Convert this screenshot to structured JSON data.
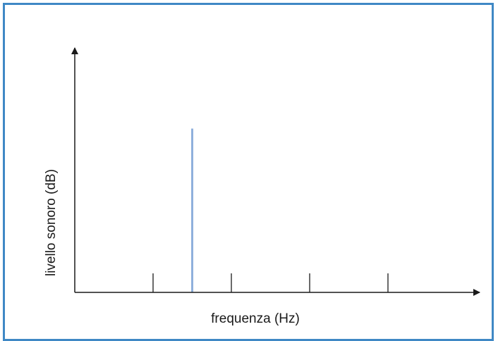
{
  "chart_data": {
    "type": "bar",
    "title": "",
    "xlabel": "frequenza (Hz)",
    "ylabel": "livello sonoro (dB)",
    "x_ticks": 5,
    "bars": [
      {
        "x": 1.5,
        "value": 0.67
      }
    ],
    "xlim": [
      0,
      5
    ],
    "ylim": [
      0,
      1
    ],
    "grid": false,
    "legend": "none",
    "colors": {
      "bar": "#8fb0dc",
      "axis": "#1a1a1a",
      "frame": "#3f88c5"
    }
  }
}
